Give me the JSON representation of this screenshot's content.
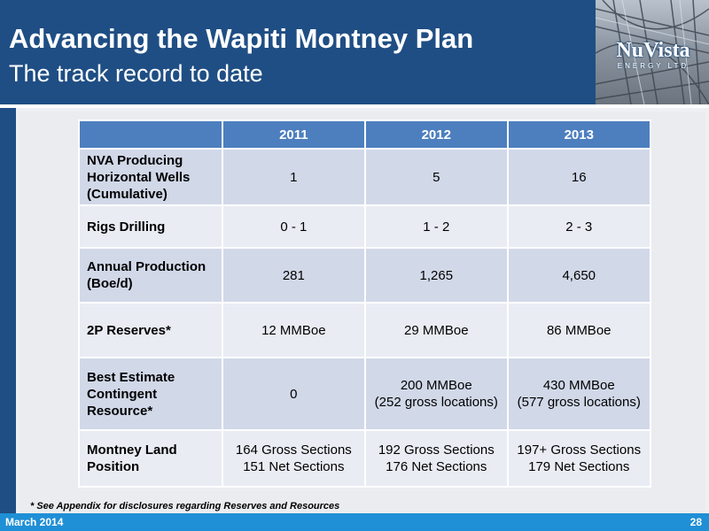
{
  "header": {
    "title": "Advancing the Wapiti Montney Plan",
    "subtitle": "The track record to date"
  },
  "logo": {
    "name": "NuVista",
    "tagline": "ENERGY LTD"
  },
  "table": {
    "columns": [
      "",
      "2011",
      "2012",
      "2013"
    ],
    "rows": [
      {
        "label": "NVA Producing\nHorizontal Wells\n(Cumulative)",
        "values": [
          "1",
          "5",
          "16"
        ]
      },
      {
        "label": "Rigs Drilling",
        "values": [
          "0 - 1",
          "1 - 2",
          "2 - 3"
        ]
      },
      {
        "label": "Annual Production\n(Boe/d)",
        "values": [
          "281",
          "1,265",
          "4,650"
        ]
      },
      {
        "label": "2P Reserves*",
        "values": [
          "12 MMBoe",
          "29 MMBoe",
          "86 MMBoe"
        ]
      },
      {
        "label": "Best Estimate\nContingent\nResource*",
        "values": [
          "0",
          "200 MMBoe\n(252 gross locations)",
          "430 MMBoe\n(577 gross locations)"
        ]
      },
      {
        "label": "Montney Land\nPosition",
        "values": [
          "164 Gross Sections\n151 Net Sections",
          "192 Gross Sections\n176 Net Sections",
          "197+ Gross Sections\n179 Net Sections"
        ]
      }
    ]
  },
  "footnote": "*  See Appendix for disclosures regarding Reserves and Resources",
  "footer": {
    "date": "March 2014",
    "page": "28"
  },
  "colors": {
    "header_blue": "#1f4e84",
    "table_header": "#4d7fbf",
    "row_dark": "#d1d8e8",
    "row_light": "#e9ecf3",
    "footer_blue": "#1f8fd6"
  }
}
